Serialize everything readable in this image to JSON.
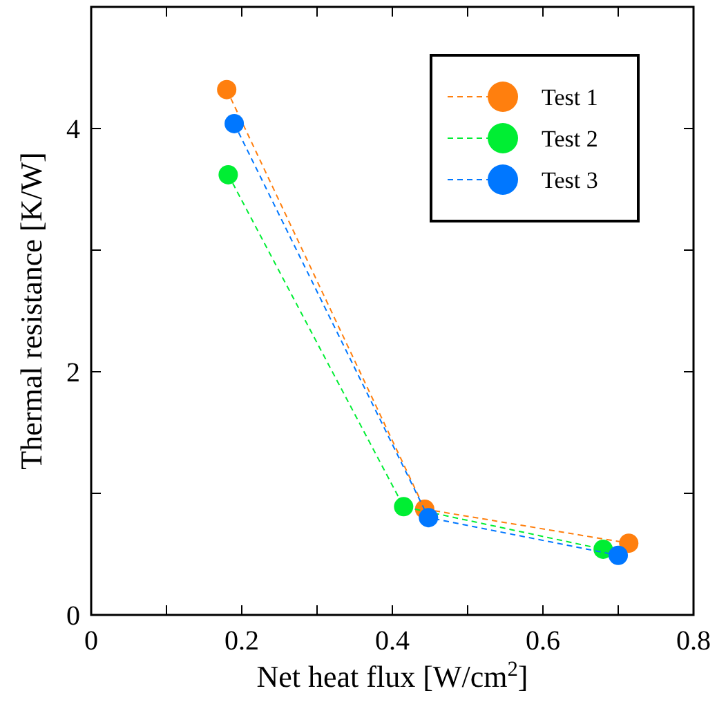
{
  "chart_data": {
    "type": "line",
    "xlabel": "Net heat flux [W/cm$^{2}$]",
    "ylabel": "Thermal resistance [K/W]",
    "xlim": [
      0,
      0.8
    ],
    "ylim": [
      0,
      5
    ],
    "xticks": [
      0,
      {
        "value": 0.1,
        "label": null
      },
      0.2,
      {
        "value": 0.3,
        "label": null
      },
      0.4,
      {
        "value": 0.5,
        "label": null
      },
      0.6,
      {
        "value": 0.7,
        "label": null
      },
      0.8
    ],
    "yticks": [
      0,
      {
        "value": 1,
        "label": null
      },
      2,
      {
        "value": 3,
        "label": null
      },
      4,
      {
        "value": 5,
        "label": null
      }
    ],
    "marker": "circle",
    "line_style": "dashed",
    "legend": "top right",
    "grid": false,
    "series": [
      {
        "name": "Test 1",
        "color": "#ff7f0e",
        "x": [
          0.18,
          0.443,
          0.714
        ],
        "values": [
          4.32,
          0.87,
          0.59
        ]
      },
      {
        "name": "Test 2",
        "color": "#00ee33",
        "x": [
          0.182,
          0.415,
          0.68
        ],
        "values": [
          3.62,
          0.89,
          0.54
        ]
      },
      {
        "name": "Test 3",
        "color": "#0077ff",
        "x": [
          0.19,
          0.448,
          0.7
        ],
        "values": [
          4.04,
          0.8,
          0.49
        ]
      }
    ]
  }
}
